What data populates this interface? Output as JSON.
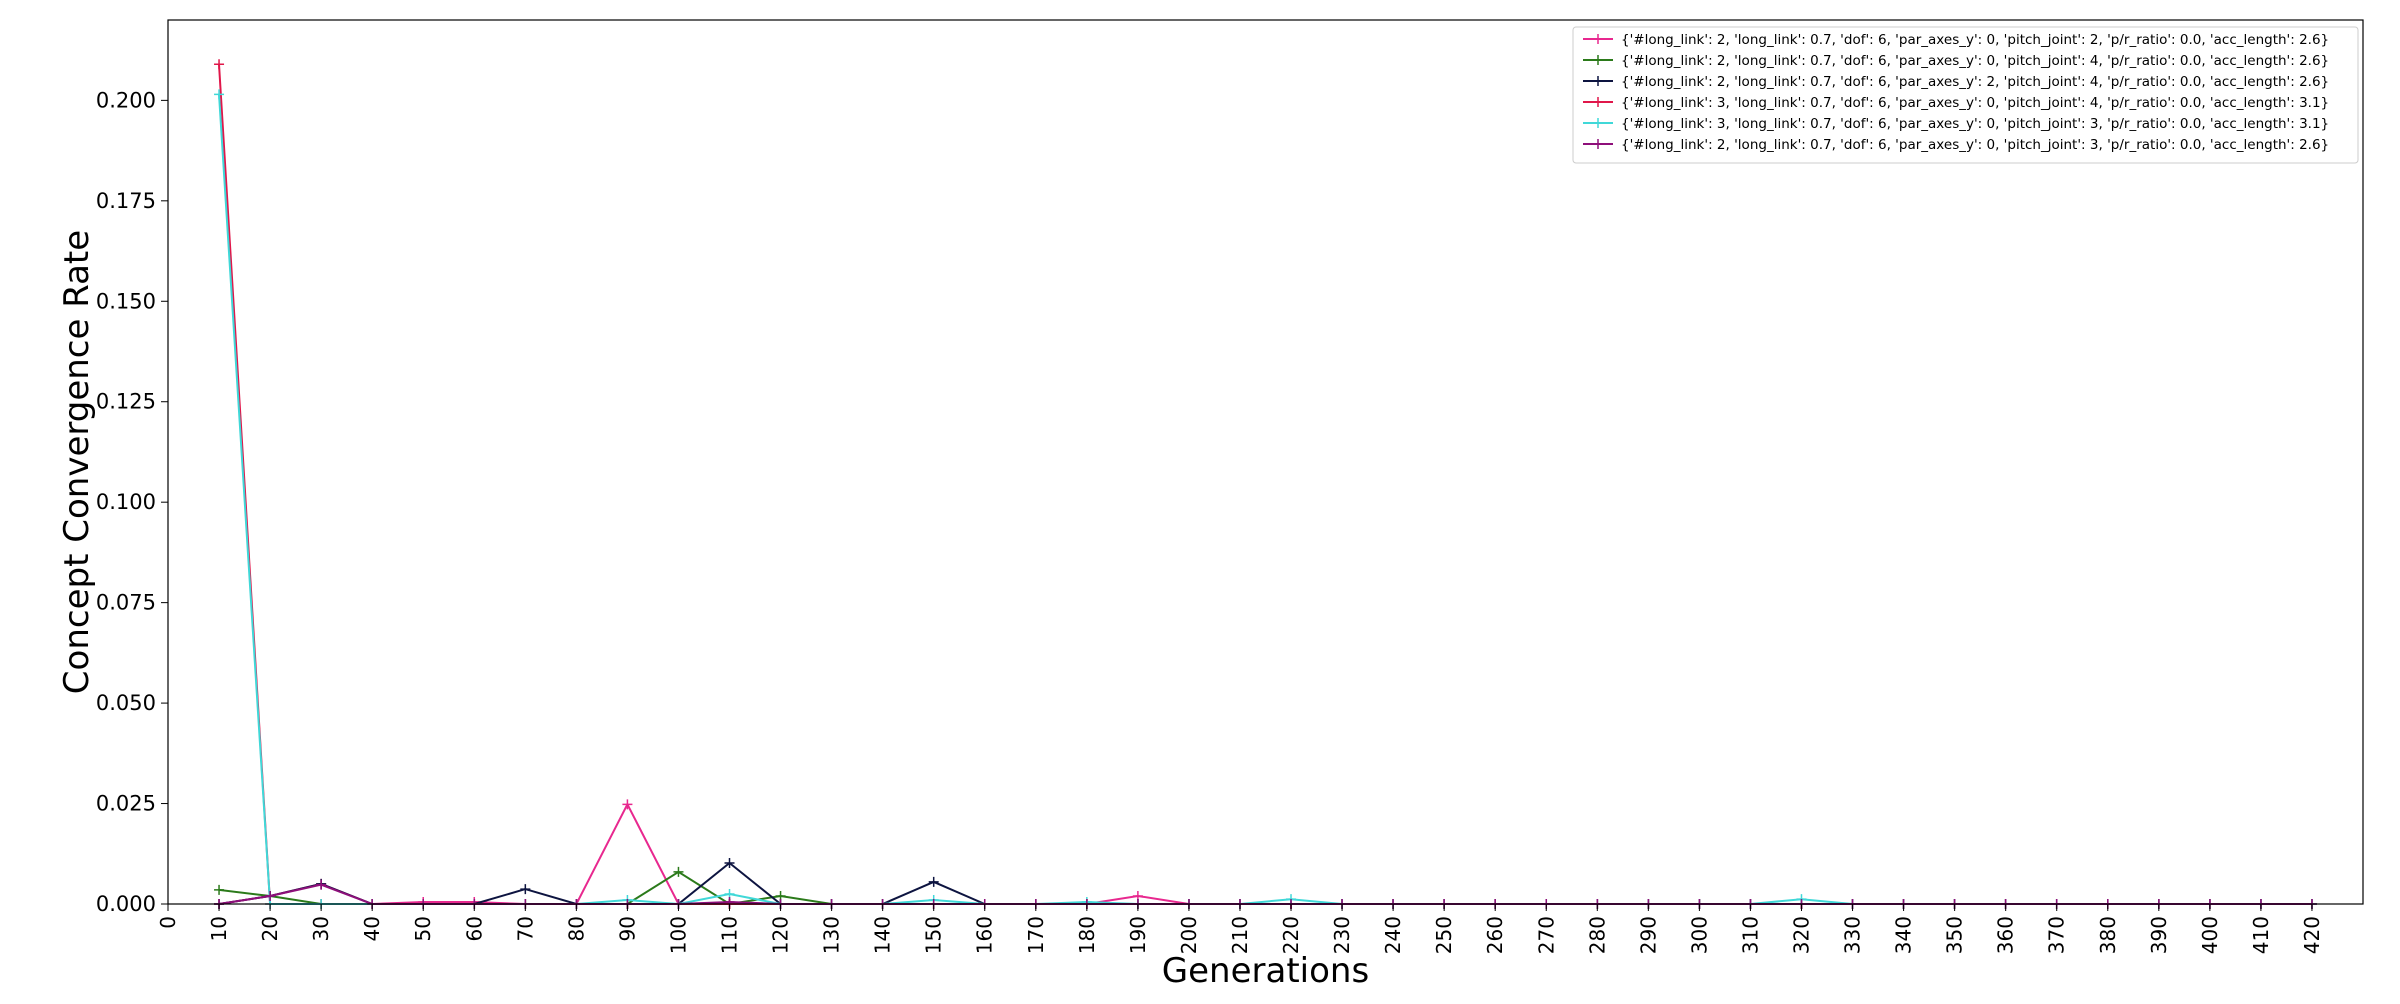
{
  "chart_data": {
    "type": "line",
    "title": "",
    "xlabel": "Generations",
    "ylabel": "Concept Convergence Rate",
    "xlim": [
      0,
      430
    ],
    "ylim": [
      0,
      0.22
    ],
    "x_ticks": [
      0,
      10,
      20,
      30,
      40,
      50,
      60,
      70,
      80,
      90,
      100,
      110,
      120,
      130,
      140,
      150,
      160,
      170,
      180,
      190,
      200,
      210,
      220,
      230,
      240,
      250,
      260,
      270,
      280,
      290,
      300,
      310,
      320,
      330,
      340,
      350,
      360,
      370,
      380,
      390,
      400,
      410,
      420
    ],
    "x_tick_labels": [
      "0",
      "10",
      "20",
      "30",
      "40",
      "50",
      "60",
      "70",
      "80",
      "90",
      "100",
      "110",
      "120",
      "130",
      "140",
      "150",
      "160",
      "170",
      "180",
      "190",
      "200",
      "210",
      "220",
      "230",
      "240",
      "250",
      "260",
      "270",
      "280",
      "290",
      "300",
      "310",
      "320",
      "330",
      "340",
      "350",
      "360",
      "370",
      "380",
      "390",
      "400",
      "410",
      "420"
    ],
    "y_ticks": [
      0,
      0.025,
      0.05,
      0.075,
      0.1,
      0.125,
      0.15,
      0.175,
      0.2
    ],
    "y_tick_labels": [
      "0.000",
      "0.025",
      "0.050",
      "0.075",
      "0.100",
      "0.125",
      "0.150",
      "0.175",
      "0.200"
    ],
    "grid": false,
    "legend_position": "top-right",
    "x": [
      10,
      20,
      30,
      40,
      50,
      60,
      70,
      80,
      90,
      100,
      110,
      120,
      130,
      140,
      150,
      160,
      170,
      180,
      190,
      200,
      210,
      220,
      230,
      240,
      250,
      260,
      270,
      280,
      290,
      300,
      310,
      320,
      330,
      340,
      350,
      360,
      370,
      380,
      390,
      400,
      410,
      420
    ],
    "series": [
      {
        "name": "{'#long_link': 2, 'long_link': 0.7, 'dof': 6, 'par_axes_y': 0, 'pitch_joint': 2, 'p/r_ratio': 0.0, 'acc_length': 2.6}",
        "color": "#e8288f",
        "values": [
          0.0,
          0.002,
          0.005,
          0.0,
          0.0005,
          0.0005,
          0.0,
          0.0,
          0.0248,
          0.0,
          0.0,
          0.0,
          0.0,
          0.0,
          0.0,
          0.0,
          0.0,
          0.0,
          0.002,
          0.0,
          0.0,
          0.0,
          0.0,
          0.0,
          0.0,
          0.0,
          0.0,
          0.0,
          0.0,
          0.0,
          0.0,
          0.0,
          0.0,
          0.0,
          0.0,
          0.0,
          0.0,
          0.0,
          0.0,
          0.0,
          0.0,
          0.0
        ]
      },
      {
        "name": "{'#long_link': 2, 'long_link': 0.7, 'dof': 6, 'par_axes_y': 0, 'pitch_joint': 4, 'p/r_ratio': 0.0, 'acc_length': 2.6}",
        "color": "#2b7a1a",
        "values": [
          0.0035,
          0.002,
          0.0,
          0.0,
          0.0,
          0.0,
          0.0,
          0.0,
          0.0,
          0.008,
          0.0,
          0.002,
          0.0,
          0.0,
          0.0,
          0.0,
          0.0,
          0.0,
          0.0,
          0.0,
          0.0,
          0.0,
          0.0,
          0.0,
          0.0,
          0.0,
          0.0,
          0.0,
          0.0,
          0.0,
          0.0,
          0.0,
          0.0,
          0.0,
          0.0,
          0.0,
          0.0,
          0.0,
          0.0,
          0.0,
          0.0,
          0.0
        ]
      },
      {
        "name": "{'#long_link': 2, 'long_link': 0.7, 'dof': 6, 'par_axes_y': 2, 'pitch_joint': 4, 'p/r_ratio': 0.0, 'acc_length': 2.6}",
        "color": "#0d1440",
        "values": [
          0.0,
          0.002,
          0.005,
          0.0,
          0.0,
          0.0,
          0.0037,
          0.0,
          0.0,
          0.0,
          0.0102,
          0.0,
          0.0,
          0.0,
          0.0055,
          0.0,
          0.0,
          0.0,
          0.0,
          0.0,
          0.0,
          0.0,
          0.0,
          0.0,
          0.0,
          0.0,
          0.0,
          0.0,
          0.0,
          0.0,
          0.0,
          0.0,
          0.0,
          0.0,
          0.0,
          0.0,
          0.0,
          0.0,
          0.0,
          0.0,
          0.0,
          0.0
        ]
      },
      {
        "name": "{'#long_link': 3, 'long_link': 0.7, 'dof': 6, 'par_axes_y': 0, 'pitch_joint': 4, 'p/r_ratio': 0.0, 'acc_length': 3.1}",
        "color": "#e0174a",
        "values": [
          0.209,
          0.0,
          0.0,
          0.0,
          0.0,
          0.0,
          0.0,
          0.0,
          0.0,
          0.0,
          0.0,
          0.0,
          0.0,
          0.0,
          0.0,
          0.0,
          0.0,
          0.0,
          0.0,
          0.0,
          0.0,
          0.0,
          0.0,
          0.0,
          0.0,
          0.0,
          0.0,
          0.0,
          0.0,
          0.0,
          0.0,
          0.0,
          0.0,
          0.0,
          0.0,
          0.0,
          0.0,
          0.0,
          0.0,
          0.0,
          0.0,
          0.0
        ]
      },
      {
        "name": "{'#long_link': 3, 'long_link': 0.7, 'dof': 6, 'par_axes_y': 0, 'pitch_joint': 3, 'p/r_ratio': 0.0, 'acc_length': 3.1}",
        "color": "#40d8d8",
        "values": [
          0.2015,
          0.0,
          0.0,
          0.0,
          0.0,
          0.0,
          0.0,
          0.0,
          0.001,
          0.0,
          0.0025,
          0.0,
          0.0,
          0.0,
          0.001,
          0.0,
          0.0,
          0.0005,
          0.0,
          0.0,
          0.0,
          0.0012,
          0.0,
          0.0,
          0.0,
          0.0,
          0.0,
          0.0,
          0.0,
          0.0,
          0.0,
          0.0012,
          0.0,
          0.0,
          0.0,
          0.0,
          0.0,
          0.0,
          0.0,
          0.0,
          0.0,
          0.0
        ]
      },
      {
        "name": "{'#long_link': 2, 'long_link': 0.7, 'dof': 6, 'par_axes_y': 0, 'pitch_joint': 3, 'p/r_ratio': 0.0, 'acc_length': 2.6}",
        "color": "#8e0f7a",
        "values": [
          0.0,
          0.002,
          0.0048,
          0.0,
          0.0,
          0.0,
          0.0,
          0.0,
          0.0,
          0.0,
          0.0005,
          0.0,
          0.0,
          0.0,
          0.0,
          0.0,
          0.0,
          0.0,
          0.0,
          0.0,
          0.0,
          0.0,
          0.0,
          0.0,
          0.0,
          0.0,
          0.0,
          0.0,
          0.0,
          0.0,
          0.0,
          0.0,
          0.0,
          0.0,
          0.0,
          0.0,
          0.0,
          0.0,
          0.0,
          0.0,
          0.0,
          0.0
        ]
      }
    ]
  }
}
